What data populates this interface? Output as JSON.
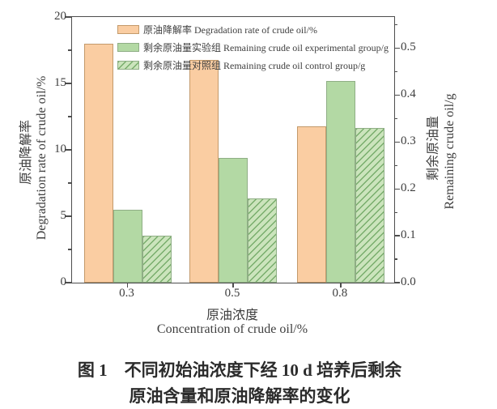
{
  "chart_data": {
    "type": "bar",
    "categories": [
      "0.3",
      "0.5",
      "0.8"
    ],
    "series": [
      {
        "name": "原油降解率 Degradation rate of crude oil/%",
        "axis": "left",
        "style": "orange-solid",
        "values": [
          18.0,
          16.8,
          11.8
        ]
      },
      {
        "name": "剩余原油量实验组 Remaining crude oil experimental group/g",
        "axis": "right",
        "style": "green-solid",
        "values": [
          0.155,
          0.265,
          0.43
        ]
      },
      {
        "name": "剩余原油量对照组 Remaining crude oil control group/g",
        "axis": "right",
        "style": "green-hatched",
        "values": [
          0.1,
          0.18,
          0.33
        ]
      }
    ],
    "left_axis": {
      "label_zh": "原油降解率",
      "label_en": "Degradation rate of crude oil/%",
      "ticks": [
        0,
        5,
        10,
        15,
        20
      ],
      "ylim": [
        0,
        20
      ],
      "minor_step": 2.5
    },
    "right_axis": {
      "label_zh": "剩余原油量",
      "label_en": "Remaining crude oil/g",
      "ticks": [
        "0.0",
        "0.1",
        "0.2",
        "0.3",
        "0.4",
        "0.5"
      ],
      "ylim": [
        0,
        0.566
      ],
      "minor_step": 0.05
    },
    "x_axis": {
      "label_zh": "原油浓度",
      "label_en": "Concentration of crude oil/%",
      "tick_labels": [
        "0.3",
        "0.5",
        "0.8"
      ]
    },
    "legend_position": "top-center-inside",
    "grid": false,
    "colors": {
      "orange_fill": "#facda2",
      "green_fill": "#b3d9a4",
      "hatch_fill": "#cbe4bc",
      "hatch_line": "#74aa68",
      "axis": "#4d4d4d",
      "text": "#3e3e3e"
    }
  },
  "caption": {
    "line1": "图 1　不同初始油浓度下经 10 d 培养后剩余",
    "line2": "原油含量和原油降解率的变化"
  }
}
